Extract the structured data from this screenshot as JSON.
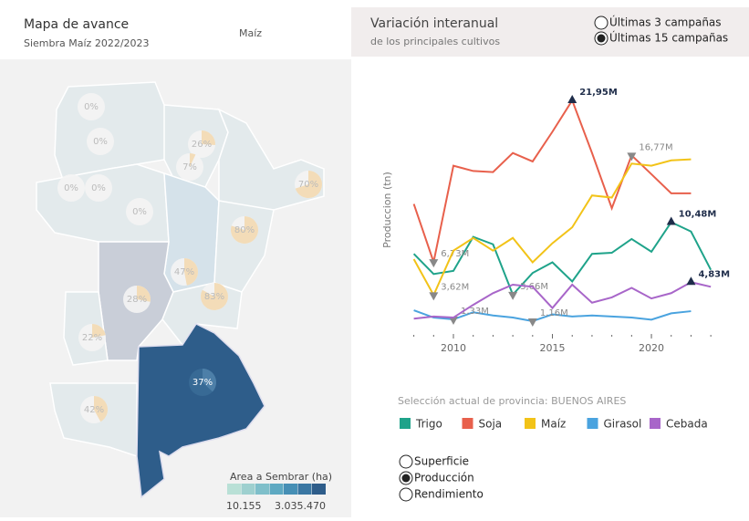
{
  "map_panel": {
    "title": "Mapa de avance",
    "subtitle": "Siembra Maíz 2022/2023",
    "crop_selector": "Maíz",
    "provinces": [
      {
        "value": 0,
        "label": "0%"
      },
      {
        "value": 0,
        "label": "0%"
      },
      {
        "value": 26,
        "label": "26%"
      },
      {
        "value": 7,
        "label": "7%"
      },
      {
        "value": 70,
        "label": "70%"
      },
      {
        "value": 0,
        "label": "0%"
      },
      {
        "value": 0,
        "label": "0%"
      },
      {
        "value": 0,
        "label": "0%"
      },
      {
        "value": 80,
        "label": "80%"
      },
      {
        "value": 47,
        "label": "47%"
      },
      {
        "value": 83,
        "label": "83%"
      },
      {
        "value": 28,
        "label": "28%"
      },
      {
        "value": 22,
        "label": "22%"
      },
      {
        "value": 42,
        "label": "42%"
      },
      {
        "value": 37,
        "label": "37%"
      }
    ],
    "legend": {
      "title": "Area a Sembrar (ha)",
      "min": "10.155",
      "max": "3.035.470",
      "colors": [
        "#b9e0d6",
        "#9ed0cf",
        "#7fbfca",
        "#5ea9c2",
        "#468fb5",
        "#3a77a3",
        "#2e5d8a"
      ]
    }
  },
  "chart_panel": {
    "title": "Variación interanual",
    "subtitle": "de los principales cultivos",
    "period_options": [
      "Últimas 3 campañas",
      "Últimas 15 campañas"
    ],
    "selected_period": 1,
    "selection_note": "Selección actual de provincia: BUENOS AIRES",
    "metric_options": [
      "Superficie",
      "Producción",
      "Rendimiento"
    ],
    "selected_metric": 1
  },
  "chart_data": {
    "type": "line",
    "y_label": "Produccion (tn)",
    "x": [
      2008,
      2009,
      2010,
      2011,
      2012,
      2013,
      2014,
      2015,
      2016,
      2017,
      2018,
      2019,
      2020,
      2021,
      2022,
      2023
    ],
    "xlim": [
      2007.5,
      2023.5
    ],
    "xticks": [
      2010,
      2015,
      2020
    ],
    "ylim": [
      0,
      23500000
    ],
    "series": [
      {
        "name": "Trigo",
        "color": "#1fa38a",
        "values": [
          7500000,
          5600000,
          5900000,
          9100000,
          8400000,
          3660000,
          5700000,
          6700000,
          4900000,
          7500000,
          7600000,
          8900000,
          7700000,
          10480000,
          9600000,
          6000000
        ],
        "value_labels": [
          null,
          null,
          null,
          null,
          null,
          "3,66M",
          null,
          null,
          null,
          null,
          null,
          null,
          null,
          "10,48M",
          null,
          null
        ]
      },
      {
        "name": "Soja",
        "color": "#e8604c",
        "values": [
          12200000,
          6730000,
          15800000,
          15300000,
          15200000,
          17000000,
          16200000,
          19000000,
          21950000,
          17000000,
          11800000,
          16770000,
          15000000,
          13200000,
          13200000,
          null
        ],
        "value_labels": [
          null,
          "6,73M",
          null,
          null,
          null,
          null,
          null,
          null,
          "21,95M",
          null,
          null,
          "16,77M",
          null,
          null,
          null,
          null
        ]
      },
      {
        "name": "Maíz",
        "color": "#f2c318",
        "values": [
          7000000,
          3620000,
          7800000,
          9000000,
          7800000,
          9000000,
          6700000,
          8500000,
          10000000,
          13000000,
          12800000,
          16000000,
          15800000,
          16300000,
          16400000,
          null
        ],
        "value_labels": [
          null,
          "3,62M",
          null,
          null,
          null,
          null,
          null,
          null,
          null,
          null,
          null,
          null,
          null,
          null,
          null,
          null
        ]
      },
      {
        "name": "Girasol",
        "color": "#4aa3df",
        "values": [
          2190000,
          1500000,
          1330000,
          2000000,
          1700000,
          1500000,
          1160000,
          1800000,
          1600000,
          1700000,
          1600000,
          1500000,
          1300000,
          1900000,
          2100000,
          null
        ],
        "value_labels": [
          null,
          null,
          "1,33M",
          null,
          null,
          null,
          "1,16M",
          null,
          null,
          null,
          null,
          null,
          null,
          null,
          null,
          null
        ]
      },
      {
        "name": "Cebada",
        "color": "#a866c9",
        "values": [
          1400000,
          1600000,
          1500000,
          2700000,
          3800000,
          4600000,
          4400000,
          2400000,
          4600000,
          2900000,
          3400000,
          4300000,
          3300000,
          3800000,
          4830000,
          4400000
        ],
        "value_labels": [
          null,
          null,
          null,
          null,
          null,
          null,
          null,
          null,
          null,
          null,
          null,
          null,
          null,
          null,
          "4,83M",
          null
        ]
      }
    ]
  }
}
